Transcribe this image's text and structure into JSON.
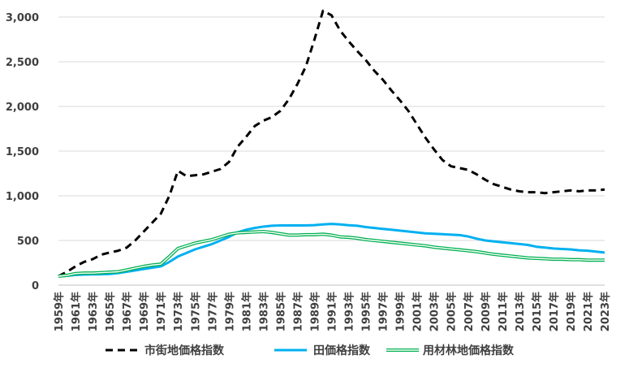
{
  "chart_data": {
    "type": "line",
    "title": "",
    "xlabel": "",
    "ylabel": "",
    "ylim": [
      0,
      3100
    ],
    "yticks": [
      0,
      500,
      1000,
      1500,
      2000,
      2500,
      3000
    ],
    "ytick_labels": [
      "0",
      "500",
      "1,000",
      "1,500",
      "2,000",
      "2,500",
      "3,000"
    ],
    "x": [
      1959,
      1960,
      1961,
      1962,
      1963,
      1964,
      1965,
      1966,
      1967,
      1968,
      1969,
      1970,
      1971,
      1972,
      1973,
      1974,
      1975,
      1976,
      1977,
      1978,
      1979,
      1980,
      1981,
      1982,
      1983,
      1984,
      1985,
      1986,
      1987,
      1988,
      1989,
      1990,
      1991,
      1992,
      1993,
      1994,
      1995,
      1996,
      1997,
      1998,
      1999,
      2000,
      2001,
      2002,
      2003,
      2004,
      2005,
      2006,
      2007,
      2008,
      2009,
      2010,
      2011,
      2012,
      2013,
      2014,
      2015,
      2016,
      2017,
      2018,
      2019,
      2020,
      2021,
      2022,
      2023
    ],
    "xtick_labels": [
      "1959年",
      "1961年",
      "1963年",
      "1965年",
      "1967年",
      "1969年",
      "1971年",
      "1973年",
      "1975年",
      "1977年",
      "1979年",
      "1981年",
      "1983年",
      "1985年",
      "1987年",
      "1989年",
      "1991年",
      "1993年",
      "1995年",
      "1997年",
      "1999年",
      "2001年",
      "2003年",
      "2005年",
      "2007年",
      "2009年",
      "2011年",
      "2013年",
      "2015年",
      "2017年",
      "2019年",
      "2021年",
      "2023年"
    ],
    "grid": true,
    "legend_position": "bottom",
    "series": [
      {
        "name": "市街地価格指数",
        "color": "#000000",
        "style": "dashed",
        "values": [
          100,
          150,
          210,
          260,
          290,
          340,
          365,
          385,
          420,
          500,
          600,
          700,
          800,
          1000,
          1280,
          1220,
          1230,
          1240,
          1270,
          1300,
          1380,
          1550,
          1660,
          1780,
          1840,
          1880,
          1950,
          2080,
          2250,
          2450,
          2750,
          3070,
          3020,
          2850,
          2730,
          2620,
          2520,
          2400,
          2300,
          2180,
          2070,
          1950,
          1800,
          1650,
          1520,
          1400,
          1330,
          1310,
          1290,
          1240,
          1180,
          1130,
          1100,
          1070,
          1050,
          1040,
          1040,
          1030,
          1040,
          1050,
          1060,
          1050,
          1060,
          1060,
          1070
        ]
      },
      {
        "name": "田価格指数",
        "color": "#00B0F0",
        "style": "solid",
        "values": [
          100,
          105,
          115,
          118,
          120,
          122,
          125,
          135,
          150,
          165,
          180,
          195,
          210,
          260,
          320,
          360,
          400,
          430,
          460,
          500,
          540,
          590,
          620,
          640,
          655,
          665,
          668,
          668,
          668,
          668,
          672,
          680,
          685,
          680,
          670,
          665,
          650,
          640,
          630,
          620,
          610,
          600,
          590,
          580,
          575,
          570,
          565,
          560,
          545,
          520,
          500,
          490,
          480,
          470,
          460,
          450,
          430,
          420,
          410,
          405,
          400,
          390,
          385,
          375,
          365
        ]
      },
      {
        "name": "用材林地価格指数",
        "color": "#00B050",
        "style": "double",
        "values": [
          100,
          110,
          130,
          135,
          135,
          140,
          145,
          150,
          170,
          190,
          210,
          225,
          235,
          320,
          410,
          440,
          470,
          490,
          510,
          540,
          570,
          585,
          590,
          595,
          600,
          590,
          575,
          560,
          560,
          565,
          565,
          570,
          560,
          540,
          535,
          525,
          510,
          500,
          490,
          480,
          470,
          460,
          450,
          440,
          425,
          415,
          405,
          395,
          385,
          375,
          360,
          345,
          335,
          325,
          315,
          305,
          300,
          295,
          290,
          290,
          285,
          285,
          280,
          280,
          280
        ]
      }
    ]
  }
}
